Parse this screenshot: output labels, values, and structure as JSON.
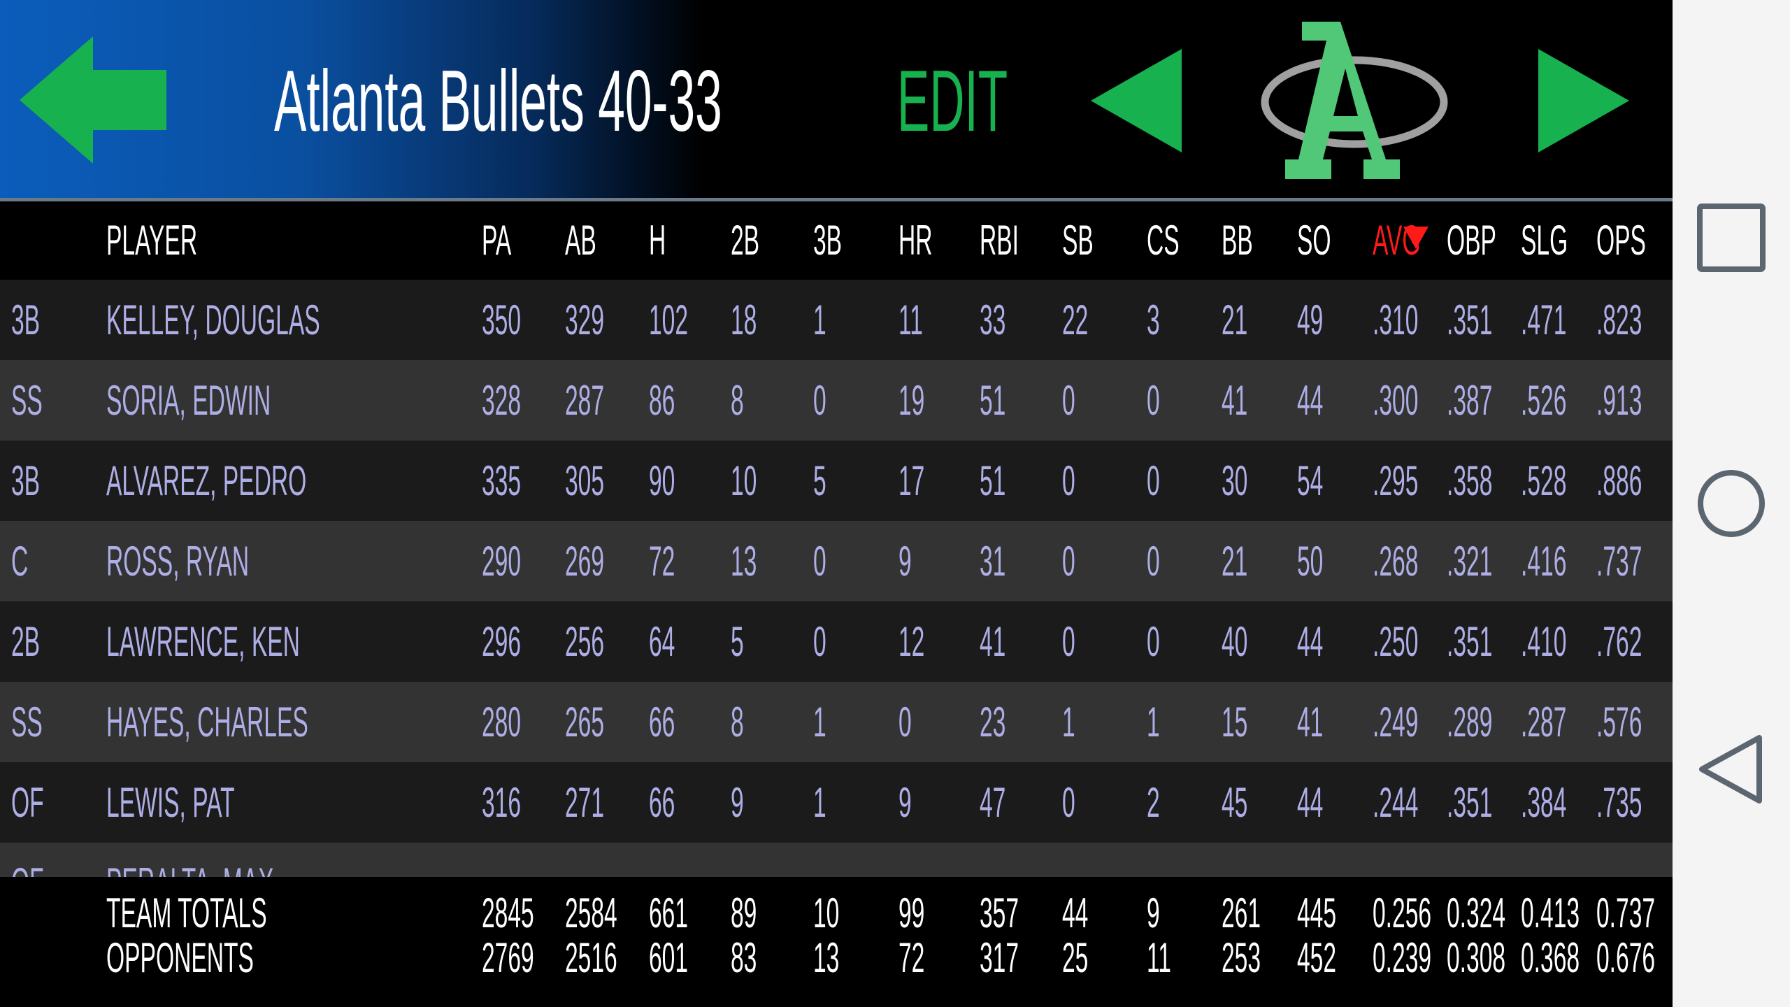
{
  "header": {
    "title": "Atlanta Bullets 40-33",
    "edit_label": "EDIT",
    "back_icon": "arrow-left-icon",
    "prev_icon": "triangle-left-icon",
    "next_icon": "triangle-right-icon",
    "logo_letter": "A",
    "accent_color": "#17b24f",
    "logo_color": "#50c878"
  },
  "table": {
    "columns": [
      "",
      "PLAYER",
      "PA",
      "AB",
      "H",
      "2B",
      "3B",
      "HR",
      "RBI",
      "SB",
      "CS",
      "BB",
      "SO",
      "AVG",
      "OBP",
      "SLG",
      "OPS"
    ],
    "sorted_column": "AVG",
    "sort_direction": "descending",
    "rows": [
      [
        "3B",
        "KELLEY, DOUGLAS",
        "350",
        "329",
        "102",
        "18",
        "1",
        "11",
        "33",
        "22",
        "3",
        "21",
        "49",
        ".310",
        ".351",
        ".471",
        ".823"
      ],
      [
        "SS",
        "SORIA, EDWIN",
        "328",
        "287",
        "86",
        "8",
        "0",
        "19",
        "51",
        "0",
        "0",
        "41",
        "44",
        ".300",
        ".387",
        ".526",
        ".913"
      ],
      [
        "3B",
        "ALVAREZ, PEDRO",
        "335",
        "305",
        "90",
        "10",
        "5",
        "17",
        "51",
        "0",
        "0",
        "30",
        "54",
        ".295",
        ".358",
        ".528",
        ".886"
      ],
      [
        "C",
        "ROSS, RYAN",
        "290",
        "269",
        "72",
        "13",
        "0",
        "9",
        "31",
        "0",
        "0",
        "21",
        "50",
        ".268",
        ".321",
        ".416",
        ".737"
      ],
      [
        "2B",
        "LAWRENCE, KEN",
        "296",
        "256",
        "64",
        "5",
        "0",
        "12",
        "41",
        "0",
        "0",
        "40",
        "44",
        ".250",
        ".351",
        ".410",
        ".762"
      ],
      [
        "SS",
        "HAYES, CHARLES",
        "280",
        "265",
        "66",
        "8",
        "1",
        "0",
        "23",
        "1",
        "1",
        "15",
        "41",
        ".249",
        ".289",
        ".287",
        ".576"
      ],
      [
        "OF",
        "LEWIS, PAT",
        "316",
        "271",
        "66",
        "9",
        "1",
        "9",
        "47",
        "0",
        "2",
        "45",
        "44",
        ".244",
        ".351",
        ".384",
        ".735"
      ],
      [
        "OF",
        "PERALTA, MAX"
      ]
    ],
    "totals": [
      [
        "",
        "TEAM TOTALS",
        "2845",
        "2584",
        "661",
        "89",
        "10",
        "99",
        "357",
        "44",
        "9",
        "261",
        "445",
        "0.256",
        "0.324",
        "0.413",
        "0.737"
      ],
      [
        "",
        "OPPONENTS",
        "2769",
        "2516",
        "601",
        "83",
        "13",
        "72",
        "317",
        "25",
        "11",
        "253",
        "452",
        "0.239",
        "0.308",
        "0.368",
        "0.676"
      ]
    ]
  },
  "navbar": {
    "recents_icon": "square-icon",
    "home_icon": "circle-icon",
    "back_icon": "triangle-back-icon"
  }
}
